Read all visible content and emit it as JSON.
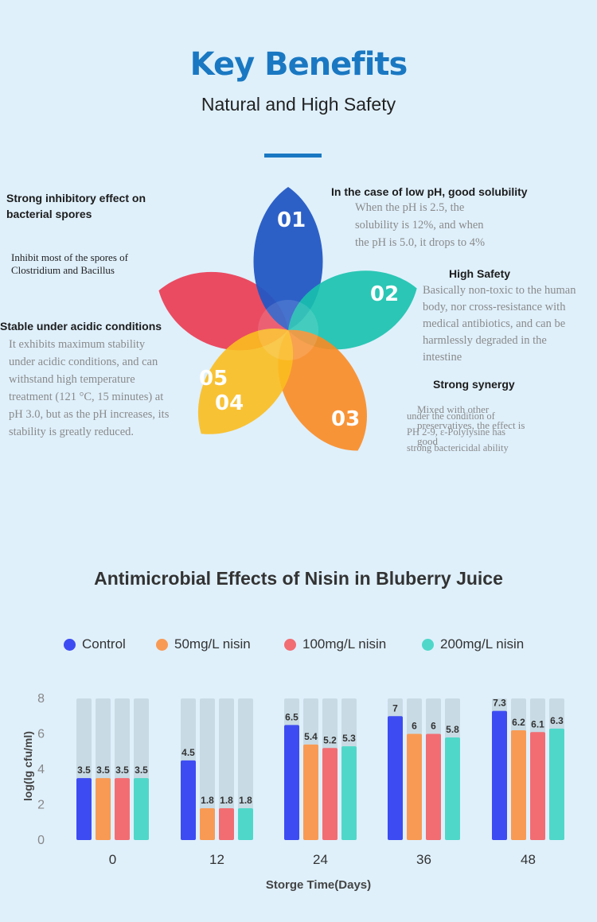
{
  "header": {
    "title": "Key Benefits",
    "subtitle": "Natural and High Safety"
  },
  "features": {
    "f1": {
      "number": "01",
      "title": "In the case of low pH, good solubility",
      "lines": [
        "When the pH is 2.5, the",
        "solubility is 12%, and when",
        "the pH is 5.0, it drops to 4%"
      ]
    },
    "f2": {
      "number": "02",
      "title": "High Safety",
      "lines": [
        "Basically non-toxic to the human",
        "body, nor cross-resistance with",
        "medical antibiotics, and can be",
        "harmlessly degraded in the",
        "intestine"
      ]
    },
    "f3": {
      "number": "03",
      "title": "Strong synergy",
      "lines_a": [
        "Mixed with other",
        "preservatives, the effect is",
        "good"
      ],
      "lines_b": [
        "under the condition of",
        "PH 2-9, ε-Polylysine has",
        "strong bactericidal ability"
      ]
    },
    "f4": {
      "number": "04",
      "title": "Stable under acidic conditions",
      "lines": [
        "It exhibits maximum stability",
        "under acidic conditions, and can",
        "withstand high temperature",
        "treatment (121 °C, 15 minutes) at",
        "pH 3.0, but as the pH increases, its",
        "stability is greatly reduced."
      ]
    },
    "f5": {
      "number": "05",
      "title_lines": [
        "Strong inhibitory effect on",
        "bacterial spores"
      ],
      "lines": [
        "Inhibit most of the spores of",
        "Clostridium and Bacillus"
      ]
    }
  },
  "colors": {
    "blue": "#3d4cf2",
    "orange": "#f99a54",
    "red": "#f26d72",
    "teal": "#4fd8c9",
    "track": "#c8dbe5",
    "petal1": "#2357c4",
    "petal2": "#17c1ad",
    "petal3": "#fb8a22",
    "petal4": "#fbbd1f",
    "petal5": "#ea4158"
  },
  "chart_data": {
    "type": "bar",
    "title": "Antimicrobial Effects of  Nisin in Bluberry Juice",
    "xlabel": "Storge Time(Days)",
    "ylabel": "log(lg cfu/ml)",
    "ylim": [
      0,
      8
    ],
    "yticks": [
      "0",
      "2",
      "4",
      "6",
      "8"
    ],
    "categories": [
      "0",
      "12",
      "24",
      "36",
      "48"
    ],
    "series": [
      {
        "name": "Control",
        "values": [
          3.5,
          4.5,
          6.5,
          7,
          7.3
        ],
        "labels": [
          "3.5",
          "4.5",
          "6.5",
          "7",
          "7.3"
        ]
      },
      {
        "name": "50mg/L nisin",
        "values": [
          3.5,
          1.8,
          5.4,
          6,
          6.2
        ],
        "labels": [
          "3.5",
          "1.8",
          "5.4",
          "6",
          "6.2"
        ]
      },
      {
        "name": "100mg/L nisin",
        "values": [
          3.5,
          1.8,
          5.2,
          6,
          6.1
        ],
        "labels": [
          "3.5",
          "1.8",
          "5.2",
          "6",
          "6.1"
        ]
      },
      {
        "name": "200mg/L nisin",
        "values": [
          3.5,
          1.8,
          5.3,
          5.8,
          6.3
        ],
        "labels": [
          "3.5",
          "1.8",
          "5.3",
          "5.8",
          "6.3"
        ]
      }
    ]
  }
}
